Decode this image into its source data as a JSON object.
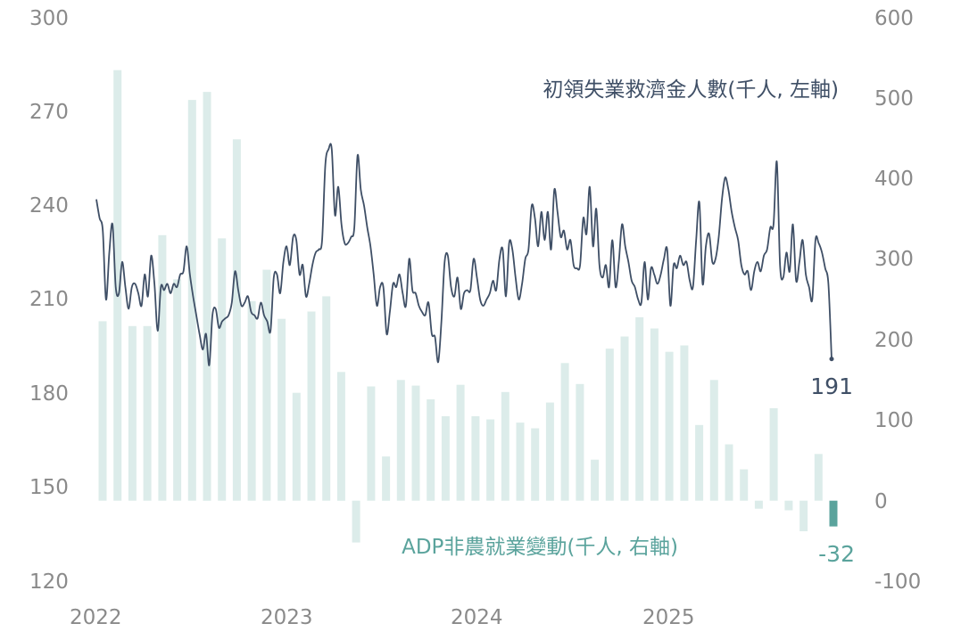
{
  "chart_data": {
    "type": "bar+line",
    "x_axis": {
      "ticks": [
        "2022",
        "2023",
        "2024",
        "2025"
      ]
    },
    "y_left": {
      "ticks": [
        "300",
        "270",
        "240",
        "210",
        "180",
        "150",
        "120"
      ],
      "range": [
        120,
        300
      ]
    },
    "y_right": {
      "ticks": [
        "600",
        "500",
        "400",
        "300",
        "200",
        "100",
        "0",
        "-100"
      ],
      "range": [
        -100,
        600
      ]
    },
    "colors": {
      "line": "#3f4f66",
      "bar": "#dcecea",
      "bar_highlight": "#5aa39c"
    },
    "line_series": {
      "name": "初領失業救濟金人數(千人, 左軸)",
      "last_value_label": "191",
      "values": [
        242,
        236,
        232,
        210,
        225,
        234,
        214,
        212,
        222,
        214,
        207,
        214,
        215,
        212,
        208,
        218,
        211,
        224,
        215,
        200,
        214,
        213,
        215,
        212,
        215,
        214,
        218,
        219,
        227,
        218,
        211,
        205,
        199,
        194,
        199,
        189,
        205,
        207,
        201,
        203,
        204,
        205,
        209,
        219,
        213,
        208,
        209,
        211,
        206,
        205,
        204,
        209,
        205,
        203,
        200,
        217,
        218,
        212,
        222,
        227,
        221,
        230,
        229,
        218,
        221,
        211,
        215,
        221,
        225,
        226,
        229,
        253,
        258,
        258,
        237,
        246,
        234,
        228,
        228,
        230,
        233,
        256,
        245,
        240,
        233,
        227,
        218,
        208,
        214,
        214,
        199,
        206,
        215,
        214,
        218,
        212,
        208,
        223,
        213,
        212,
        208,
        206,
        205,
        209,
        199,
        198,
        190,
        203,
        222,
        224,
        214,
        211,
        217,
        207,
        212,
        213,
        213,
        223,
        217,
        210,
        208,
        210,
        212,
        216,
        213,
        223,
        226,
        211,
        228,
        226,
        217,
        210,
        215,
        223,
        226,
        240,
        236,
        227,
        238,
        229,
        238,
        226,
        245,
        238,
        230,
        232,
        226,
        229,
        221,
        220,
        221,
        236,
        231,
        246,
        227,
        239,
        221,
        217,
        221,
        214,
        229,
        214,
        222,
        234,
        227,
        222,
        216,
        214,
        210,
        209,
        222,
        210,
        220,
        218,
        215,
        218,
        223,
        226,
        208,
        221,
        220,
        224,
        221,
        222,
        216,
        214,
        229,
        241,
        215,
        227,
        231,
        222,
        223,
        230,
        242,
        249,
        245,
        238,
        233,
        229,
        221,
        218,
        219,
        213,
        219,
        222,
        219,
        224,
        226,
        233,
        234,
        254,
        221,
        217,
        225,
        219,
        234,
        216,
        222,
        229,
        218,
        214,
        210,
        229,
        228,
        225,
        220,
        215,
        191
      ]
    },
    "bar_series": {
      "name": "ADP非農就業變動(千人, 右軸)",
      "last_value_label": "-32",
      "values": [
        223,
        535,
        217,
        217,
        330,
        275,
        498,
        508,
        326,
        449,
        248,
        287,
        226,
        134,
        235,
        254,
        160,
        -52,
        142,
        55,
        150,
        143,
        126,
        105,
        144,
        105,
        101,
        135,
        97,
        90,
        122,
        171,
        145,
        51,
        189,
        204,
        228,
        214,
        185,
        193,
        94,
        150,
        70,
        39,
        -10,
        115,
        -12,
        -38,
        58,
        -32
      ]
    }
  }
}
